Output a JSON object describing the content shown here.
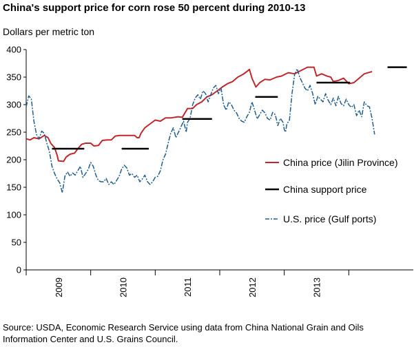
{
  "title": "China's support price for corn rose 50 percent during 2010-13",
  "source": "Source: USDA, Economic Research Service using data from China National Grain and Oils Information Center and U.S. Grains Council.",
  "chart_data": {
    "type": "line",
    "title": "China's support price for corn rose 50 percent during 2010-13",
    "ylabel": "Dollars per metric ton",
    "xlabel": "",
    "ylim": [
      0,
      400
    ],
    "xlim": [
      2008.5,
      2014.5
    ],
    "yticks": [
      "0",
      "50",
      "100",
      "150",
      "200",
      "250",
      "300",
      "350",
      "400"
    ],
    "year_labels": [
      {
        "label": "2009",
        "x": 2009.0
      },
      {
        "label": "2010",
        "x": 2010.0
      },
      {
        "label": "2011",
        "x": 2011.0
      },
      {
        "label": "2012",
        "x": 2012.0
      },
      {
        "label": "2013",
        "x": 2013.0
      }
    ],
    "legend": [
      "China price (Jilin Province)",
      "China support price",
      "U.S. price (Gulf ports)"
    ],
    "colors": {
      "china": "#c0272d",
      "support": "#000000",
      "us": "#1f5d8c"
    },
    "series": [
      {
        "name": "China price (Jilin Province)",
        "style": "solid",
        "points": [
          [
            2008.5,
            238
          ],
          [
            2008.56,
            236
          ],
          [
            2008.62,
            240
          ],
          [
            2008.7,
            238
          ],
          [
            2008.78,
            244
          ],
          [
            2008.84,
            240
          ],
          [
            2008.88,
            230
          ],
          [
            2008.94,
            222
          ],
          [
            2008.98,
            208
          ],
          [
            2009.0,
            198
          ],
          [
            2009.08,
            197
          ],
          [
            2009.12,
            205
          ],
          [
            2009.18,
            210
          ],
          [
            2009.25,
            212
          ],
          [
            2009.3,
            220
          ],
          [
            2009.36,
            228
          ],
          [
            2009.42,
            230
          ],
          [
            2009.5,
            230
          ],
          [
            2009.55,
            225
          ],
          [
            2009.62,
            226
          ],
          [
            2009.68,
            235
          ],
          [
            2009.75,
            236
          ],
          [
            2009.82,
            236
          ],
          [
            2009.88,
            243
          ],
          [
            2009.95,
            244
          ],
          [
            2010.1,
            244
          ],
          [
            2010.18,
            244
          ],
          [
            2010.22,
            240
          ],
          [
            2010.25,
            240
          ],
          [
            2010.28,
            248
          ],
          [
            2010.34,
            258
          ],
          [
            2010.42,
            265
          ],
          [
            2010.5,
            272
          ],
          [
            2010.58,
            270
          ],
          [
            2010.66,
            276
          ],
          [
            2010.75,
            276
          ],
          [
            2010.85,
            278
          ],
          [
            2010.92,
            277
          ],
          [
            2011.0,
            293
          ],
          [
            2011.08,
            293
          ],
          [
            2011.14,
            300
          ],
          [
            2011.22,
            305
          ],
          [
            2011.3,
            314
          ],
          [
            2011.38,
            318
          ],
          [
            2011.46,
            325
          ],
          [
            2011.54,
            332
          ],
          [
            2011.62,
            338
          ],
          [
            2011.7,
            342
          ],
          [
            2011.78,
            350
          ],
          [
            2011.86,
            355
          ],
          [
            2011.92,
            360
          ],
          [
            2011.96,
            364
          ],
          [
            2012.0,
            348
          ],
          [
            2012.06,
            332
          ],
          [
            2012.12,
            340
          ],
          [
            2012.2,
            346
          ],
          [
            2012.28,
            345
          ],
          [
            2012.38,
            350
          ],
          [
            2012.46,
            352
          ],
          [
            2012.56,
            358
          ],
          [
            2012.66,
            356
          ],
          [
            2012.76,
            362
          ],
          [
            2012.86,
            368
          ],
          [
            2012.96,
            368
          ],
          [
            2013.0,
            352
          ],
          [
            2013.08,
            356
          ],
          [
            2013.16,
            352
          ],
          [
            2013.22,
            350
          ],
          [
            2013.26,
            342
          ],
          [
            2013.34,
            344
          ],
          [
            2013.42,
            348
          ],
          [
            2013.5,
            338
          ],
          [
            2013.58,
            340
          ],
          [
            2013.66,
            348
          ],
          [
            2013.74,
            356
          ],
          [
            2013.8,
            358
          ],
          [
            2013.86,
            360
          ]
        ]
      },
      {
        "name": "China support price",
        "style": "segments",
        "segments": [
          {
            "x0": 2008.9,
            "x1": 2009.4,
            "y": 220
          },
          {
            "x0": 2009.98,
            "x1": 2010.4,
            "y": 220
          },
          {
            "x0": 2010.92,
            "x1": 2011.38,
            "y": 274
          },
          {
            "x0": 2012.05,
            "x1": 2012.4,
            "y": 314
          },
          {
            "x0": 2013.0,
            "x1": 2013.52,
            "y": 340
          },
          {
            "x0": 2014.1,
            "x1": 2014.4,
            "y": 368
          }
        ]
      },
      {
        "name": "U.S. price (Gulf ports)",
        "style": "dashed",
        "points": [
          [
            2008.5,
            296
          ],
          [
            2008.54,
            316
          ],
          [
            2008.58,
            310
          ],
          [
            2008.62,
            270
          ],
          [
            2008.66,
            246
          ],
          [
            2008.7,
            238
          ],
          [
            2008.74,
            252
          ],
          [
            2008.78,
            248
          ],
          [
            2008.82,
            230
          ],
          [
            2008.86,
            215
          ],
          [
            2008.9,
            188
          ],
          [
            2008.94,
            175
          ],
          [
            2008.98,
            165
          ],
          [
            2009.02,
            158
          ],
          [
            2009.06,
            140
          ],
          [
            2009.1,
            170
          ],
          [
            2009.14,
            178
          ],
          [
            2009.18,
            170
          ],
          [
            2009.22,
            176
          ],
          [
            2009.26,
            172
          ],
          [
            2009.3,
            180
          ],
          [
            2009.34,
            188
          ],
          [
            2009.38,
            168
          ],
          [
            2009.42,
            175
          ],
          [
            2009.46,
            182
          ],
          [
            2009.5,
            195
          ],
          [
            2009.54,
            188
          ],
          [
            2009.58,
            172
          ],
          [
            2009.62,
            162
          ],
          [
            2009.66,
            160
          ],
          [
            2009.7,
            160
          ],
          [
            2009.74,
            166
          ],
          [
            2009.78,
            155
          ],
          [
            2009.82,
            160
          ],
          [
            2009.86,
            155
          ],
          [
            2009.9,
            162
          ],
          [
            2009.94,
            170
          ],
          [
            2009.98,
            183
          ],
          [
            2010.02,
            190
          ],
          [
            2010.06,
            185
          ],
          [
            2010.1,
            172
          ],
          [
            2010.14,
            175
          ],
          [
            2010.18,
            168
          ],
          [
            2010.22,
            172
          ],
          [
            2010.26,
            160
          ],
          [
            2010.3,
            165
          ],
          [
            2010.34,
            172
          ],
          [
            2010.38,
            160
          ],
          [
            2010.42,
            155
          ],
          [
            2010.46,
            160
          ],
          [
            2010.5,
            168
          ],
          [
            2010.54,
            170
          ],
          [
            2010.58,
            180
          ],
          [
            2010.62,
            200
          ],
          [
            2010.66,
            210
          ],
          [
            2010.7,
            230
          ],
          [
            2010.74,
            248
          ],
          [
            2010.78,
            258
          ],
          [
            2010.82,
            240
          ],
          [
            2010.86,
            250
          ],
          [
            2010.9,
            260
          ],
          [
            2010.94,
            270
          ],
          [
            2010.98,
            250
          ],
          [
            2011.0,
            268
          ],
          [
            2011.04,
            275
          ],
          [
            2011.08,
            300
          ],
          [
            2011.12,
            312
          ],
          [
            2011.16,
            318
          ],
          [
            2011.2,
            310
          ],
          [
            2011.24,
            325
          ],
          [
            2011.28,
            320
          ],
          [
            2011.32,
            305
          ],
          [
            2011.36,
            318
          ],
          [
            2011.4,
            330
          ],
          [
            2011.44,
            335
          ],
          [
            2011.48,
            320
          ],
          [
            2011.52,
            330
          ],
          [
            2011.56,
            300
          ],
          [
            2011.6,
            290
          ],
          [
            2011.64,
            305
          ],
          [
            2011.68,
            300
          ],
          [
            2011.72,
            290
          ],
          [
            2011.76,
            285
          ],
          [
            2011.8,
            275
          ],
          [
            2011.84,
            270
          ],
          [
            2011.88,
            268
          ],
          [
            2011.92,
            278
          ],
          [
            2011.96,
            286
          ],
          [
            2012.0,
            305
          ],
          [
            2012.04,
            290
          ],
          [
            2012.08,
            274
          ],
          [
            2012.12,
            282
          ],
          [
            2012.16,
            290
          ],
          [
            2012.2,
            285
          ],
          [
            2012.24,
            275
          ],
          [
            2012.28,
            272
          ],
          [
            2012.32,
            286
          ],
          [
            2012.36,
            282
          ],
          [
            2012.4,
            262
          ],
          [
            2012.44,
            275
          ],
          [
            2012.48,
            268
          ],
          [
            2012.5,
            255
          ],
          [
            2012.52,
            250
          ],
          [
            2012.54,
            265
          ],
          [
            2012.58,
            272
          ],
          [
            2012.62,
            320
          ],
          [
            2012.66,
            355
          ],
          [
            2012.7,
            365
          ],
          [
            2012.74,
            350
          ],
          [
            2012.78,
            340
          ],
          [
            2012.82,
            330
          ],
          [
            2012.86,
            325
          ],
          [
            2012.9,
            335
          ],
          [
            2012.94,
            320
          ],
          [
            2012.98,
            300
          ],
          [
            2013.02,
            315
          ],
          [
            2013.06,
            310
          ],
          [
            2013.1,
            305
          ],
          [
            2013.14,
            320
          ],
          [
            2013.18,
            308
          ],
          [
            2013.22,
            300
          ],
          [
            2013.26,
            312
          ],
          [
            2013.3,
            298
          ],
          [
            2013.34,
            315
          ],
          [
            2013.38,
            302
          ],
          [
            2013.42,
            298
          ],
          [
            2013.46,
            310
          ],
          [
            2013.5,
            300
          ],
          [
            2013.54,
            295
          ],
          [
            2013.58,
            300
          ],
          [
            2013.62,
            280
          ],
          [
            2013.66,
            290
          ],
          [
            2013.7,
            278
          ],
          [
            2013.74,
            305
          ],
          [
            2013.78,
            298
          ],
          [
            2013.82,
            296
          ],
          [
            2013.86,
            275
          ],
          [
            2013.9,
            246
          ]
        ]
      }
    ]
  }
}
